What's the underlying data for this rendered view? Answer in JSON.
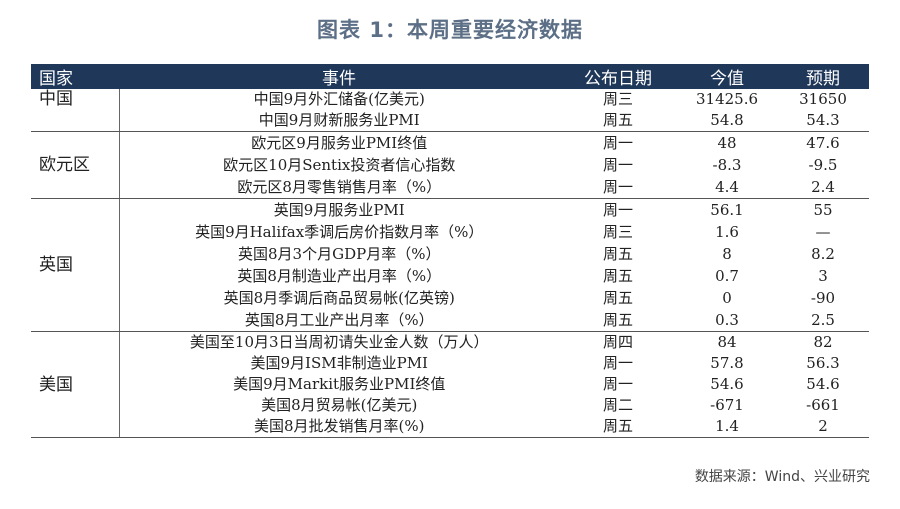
{
  "title": "图表 1：本周重要经济数据",
  "headers": [
    "国家",
    "事件",
    "公布日期",
    "今值",
    "预期"
  ],
  "groups": [
    {
      "country": "中国",
      "rows": [
        {
          "event": "中国9月外汇储备(亿美元)",
          "date": "周三",
          "actual": "31425.6",
          "forecast": "31650"
        },
        {
          "event": "中国9月财新服务业PMI",
          "date": "周五",
          "actual": "54.8",
          "forecast": "54.3"
        }
      ]
    },
    {
      "country": "欧元区",
      "rows": [
        {
          "event": "欧元区9月服务业PMI终值",
          "date": "周一",
          "actual": "48",
          "forecast": "47.6"
        },
        {
          "event": "欧元区10月Sentix投资者信心指数",
          "date": "周一",
          "actual": "-8.3",
          "forecast": "-9.5"
        },
        {
          "event": "欧元区8月零售销售月率（%）",
          "date": "周一",
          "actual": "4.4",
          "forecast": "2.4"
        }
      ]
    },
    {
      "country": "英国",
      "rows": [
        {
          "event": "英国9月服务业PMI",
          "date": "周一",
          "actual": "56.1",
          "forecast": "55"
        },
        {
          "event": "英国9月Halifax季调后房价指数月率（%）",
          "date": "周三",
          "actual": "1.6",
          "forecast": "—"
        },
        {
          "event": "英国8月3个月GDP月率（%）",
          "date": "周五",
          "actual": "8",
          "forecast": "8.2"
        },
        {
          "event": "英国8月制造业产出月率（%）",
          "date": "周五",
          "actual": "0.7",
          "forecast": "3"
        },
        {
          "event": "英国8月季调后商品贸易帐(亿英镑)",
          "date": "周五",
          "actual": "0",
          "forecast": "-90"
        },
        {
          "event": "英国8月工业产出月率（%）",
          "date": "周五",
          "actual": "0.3",
          "forecast": "2.5"
        }
      ]
    },
    {
      "country": "美国",
      "rows": [
        {
          "event": "美国至10月3日当周初请失业金人数（万人）",
          "date": "周四",
          "actual": "84",
          "forecast": "82"
        },
        {
          "event": "美国9月ISM非制造业PMI",
          "date": "周一",
          "actual": "57.8",
          "forecast": "56.3"
        },
        {
          "event": "美国9月Markit服务业PMI终值",
          "date": "周一",
          "actual": "54.6",
          "forecast": "54.6"
        },
        {
          "event": "美国8月贸易帐(亿美元)",
          "date": "周二",
          "actual": "-671",
          "forecast": "-661"
        },
        {
          "event": "美国8月批发销售月率(%)",
          "date": "周五",
          "actual": "1.4",
          "forecast": "2"
        }
      ]
    }
  ],
  "source": "数据来源：Wind、兴业研究"
}
